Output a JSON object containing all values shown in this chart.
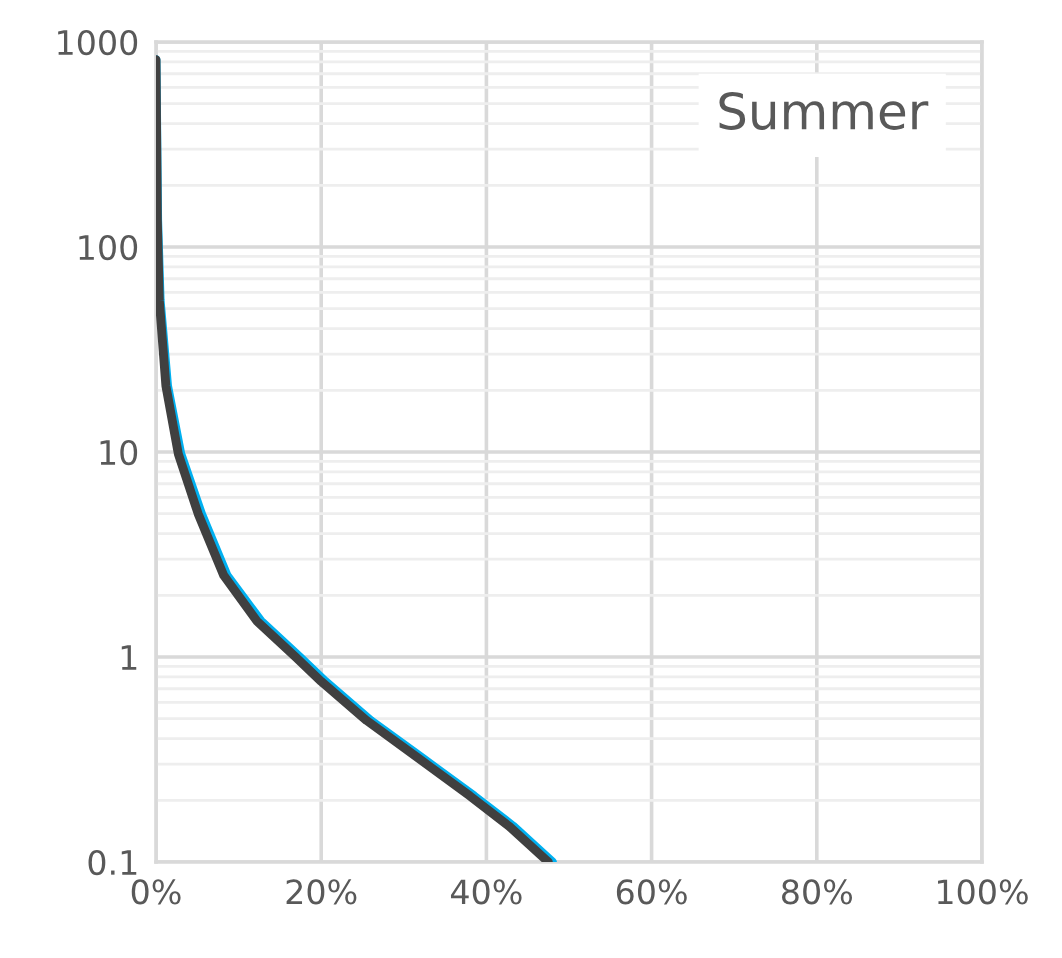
{
  "chart_data": {
    "type": "line",
    "annotations": [
      "Summer"
    ],
    "series": [
      {
        "color": "#00b0f0",
        "x": [
          0,
          0.2,
          0.5,
          1.4,
          3.0,
          5.5,
          8.6,
          12.7,
          17.4,
          20.5,
          26.0,
          32.3,
          38.5,
          43.2,
          48.0
        ],
        "values": [
          820,
          135,
          55,
          21,
          9.8,
          5.0,
          2.5,
          1.5,
          1.0,
          0.76,
          0.49,
          0.32,
          0.21,
          0.15,
          0.1
        ]
      },
      {
        "color": "#404040",
        "x": [
          0,
          0.16,
          0.4,
          1.2,
          2.7,
          5.1,
          8.2,
          12.2,
          16.9,
          20,
          25.5,
          31.8,
          38,
          42.7,
          47.5
        ],
        "values": [
          820,
          135,
          55,
          21,
          9.8,
          5.0,
          2.5,
          1.5,
          1.0,
          0.76,
          0.49,
          0.32,
          0.21,
          0.15,
          0.1
        ]
      }
    ],
    "log": "y",
    "xlim": [
      0,
      100
    ],
    "ylim": [
      0.1,
      1000
    ],
    "xticks": [
      {
        "value": 0,
        "label": "0%"
      },
      {
        "value": 20,
        "label": "20%"
      },
      {
        "value": 40,
        "label": "40%"
      },
      {
        "value": 60,
        "label": "60%"
      },
      {
        "value": 80,
        "label": "80%"
      },
      {
        "value": 100,
        "label": "100%"
      }
    ],
    "yticks": [
      0.1,
      1,
      10,
      100,
      1000
    ],
    "grid": true,
    "marker": "none",
    "line_style": "solid",
    "legend": false
  }
}
